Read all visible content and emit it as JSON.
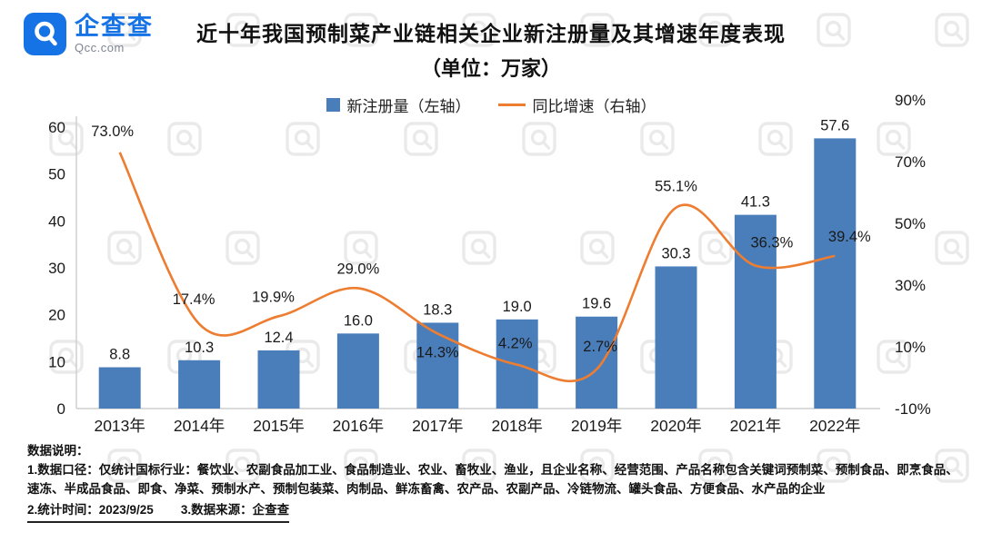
{
  "brand": {
    "name": "企查查",
    "domain": "Qcc.com"
  },
  "header": {
    "title": "近十年我国预制菜产业链相关企业新注册量及其增速年度表现",
    "subtitle": "（单位：万家）"
  },
  "legend": {
    "bar_label": "新注册量（左轴）",
    "line_label": "同比增速（右轴）"
  },
  "chart_data": {
    "type": "bar",
    "combo": "bar+line",
    "title": "近十年我国预制菜产业链相关企业新注册量及其增速年度表现（单位：万家）",
    "categories": [
      "2013年",
      "2014年",
      "2015年",
      "2016年",
      "2017年",
      "2018年",
      "2019年",
      "2020年",
      "2021年",
      "2022年"
    ],
    "series": [
      {
        "name": "新注册量（左轴）",
        "chart": "bar",
        "axis": "left",
        "color": "#4a7ebb",
        "values": [
          8.8,
          10.3,
          12.4,
          16.0,
          18.3,
          19.0,
          19.6,
          30.3,
          41.3,
          57.6
        ],
        "labels": [
          "8.8",
          "10.3",
          "12.4",
          "16.0",
          "18.3",
          "19.0",
          "19.6",
          "30.3",
          "41.3",
          "57.6"
        ]
      },
      {
        "name": "同比增速（右轴）",
        "chart": "line",
        "axis": "right",
        "color": "#ed7d31",
        "values": [
          73.0,
          17.4,
          19.9,
          29.0,
          14.3,
          4.2,
          2.7,
          55.1,
          36.3,
          39.4
        ],
        "labels": [
          "73.0%",
          "17.4%",
          "19.9%",
          "29.0%",
          "14.3%",
          "4.2%",
          "2.7%",
          "55.1%",
          "36.3%",
          "39.4%"
        ]
      }
    ],
    "left_axis": {
      "min": 0,
      "max": 60,
      "ticks": [
        0,
        10,
        20,
        30,
        40,
        50,
        60
      ]
    },
    "right_axis": {
      "min": -10,
      "max": 90,
      "ticks": [
        {
          "value": 90,
          "label": "90%"
        },
        {
          "value": 70,
          "label": "70%"
        },
        {
          "value": 50,
          "label": "50%"
        },
        {
          "value": 30,
          "label": "30%"
        },
        {
          "value": 10,
          "label": "10%"
        },
        {
          "value": -10,
          "label": "-10%"
        }
      ]
    },
    "grid": "off",
    "legend_position": "top-center"
  },
  "footer": {
    "heading": "数据说明：",
    "note1": "1.数据口径：仅统计国标行业：餐饮业、农副食品加工业、食品制造业、农业、畜牧业、渔业，且企业名称、经营范围、产品名称包含关键词预制菜、预制食品、即烹食品、速冻、半成品食品、即食、净菜、预制水产、预制包装菜、肉制品、鲜冻畜禽、农产品、农副产品、冷链物流、罐头食品、方便食品、水产品的企业",
    "note2": "2.统计时间：2023/9/25",
    "note3": "3.数据来源：企查查"
  }
}
